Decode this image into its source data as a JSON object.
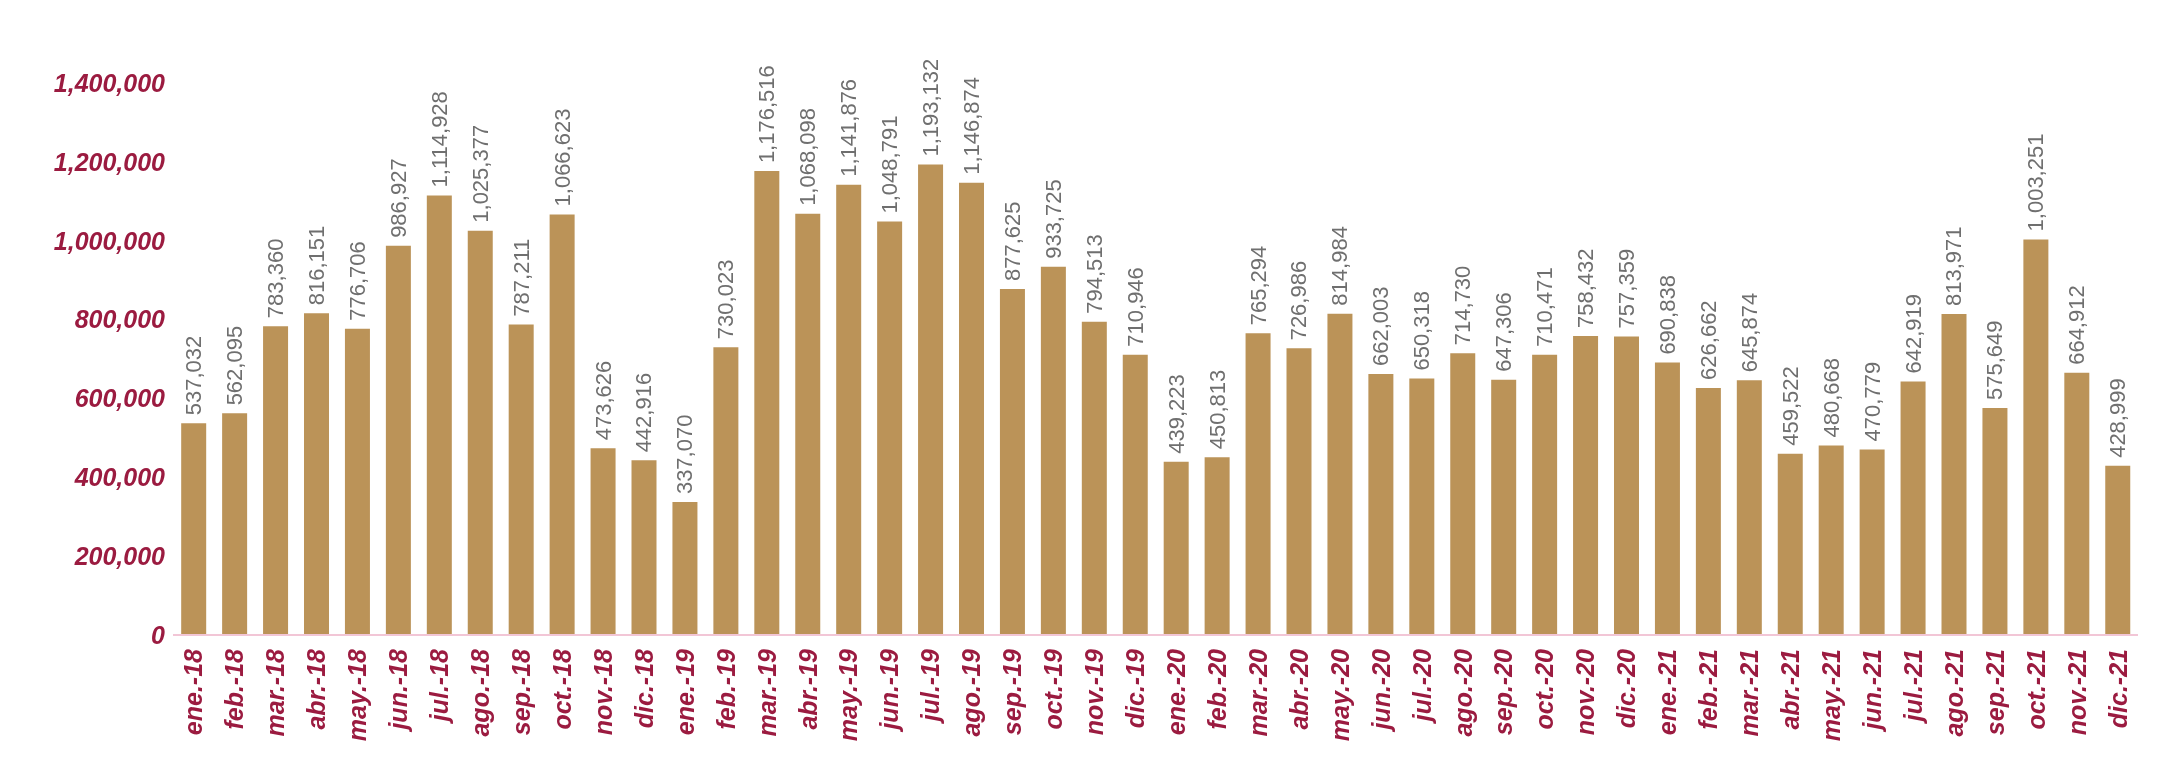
{
  "chart_data": {
    "type": "bar",
    "categories": [
      "ene.-18",
      "feb.-18",
      "mar.-18",
      "abr.-18",
      "may.-18",
      "jun.-18",
      "jul.-18",
      "ago.-18",
      "sep.-18",
      "oct.-18",
      "nov.-18",
      "dic.-18",
      "ene.-19",
      "feb.-19",
      "mar.-19",
      "abr.-19",
      "may.-19",
      "jun.-19",
      "jul.-19",
      "ago.-19",
      "sep.-19",
      "oct.-19",
      "nov.-19",
      "dic.-19",
      "ene.-20",
      "feb.-20",
      "mar.-20",
      "abr.-20",
      "may.-20",
      "jun.-20",
      "jul.-20",
      "ago.-20",
      "sep.-20",
      "oct.-20",
      "nov.-20",
      "dic.-20",
      "ene.-21",
      "feb.-21",
      "mar.-21",
      "abr.-21",
      "may.-21",
      "jun.-21",
      "jul.-21",
      "ago.-21",
      "sep.-21",
      "oct.-21",
      "nov.-21",
      "dic.-21"
    ],
    "values": [
      537032,
      562095,
      783360,
      816151,
      776706,
      986927,
      1114928,
      1025377,
      787211,
      1066623,
      473626,
      442916,
      337070,
      730023,
      1176516,
      1068098,
      1141876,
      1048791,
      1193132,
      1146874,
      877625,
      933725,
      794513,
      710946,
      439223,
      450813,
      765294,
      726986,
      814984,
      662003,
      650318,
      714730,
      647306,
      710471,
      758432,
      757359,
      690838,
      626662,
      645874,
      459522,
      480668,
      470779,
      642919,
      813971,
      575649,
      1003251,
      664912,
      428999
    ],
    "color": "#bb9358",
    "ylim": [
      0,
      1400000
    ],
    "yticks": [
      0,
      {
        "value": 200000,
        "label": "200,000"
      },
      {
        "value": 400000,
        "label": "400,000"
      },
      {
        "value": 600000,
        "label": "600,000"
      },
      {
        "value": 800000,
        "label": "800,000"
      },
      {
        "value": 1000000,
        "label": "1,000,000"
      },
      {
        "value": 1200000,
        "label": "1,200,000"
      },
      {
        "value": 1400000,
        "label": "1,400,000"
      }
    ],
    "value_labels": [
      "537,032",
      "562,095",
      "783,360",
      "816,151",
      "776,706",
      "986,927",
      "1,114,928",
      "1,025,377",
      "787,211",
      "1,066,623",
      "473,626",
      "442,916",
      "337,070",
      "730,023",
      "1,176,516",
      "1,068,098",
      "1,141,876",
      "1,048,791",
      "1,193,132",
      "1,146,874",
      "877,625",
      "933,725",
      "794,513",
      "710,946",
      "439,223",
      "450,813",
      "765,294",
      "726,986",
      "814,984",
      "662,003",
      "650,318",
      "714,730",
      "647,306",
      "710,471",
      "758,432",
      "757,359",
      "690,838",
      "626,662",
      "645,874",
      "459,522",
      "480,668",
      "470,779",
      "642,919",
      "813,971",
      "575,649",
      "1,003,251",
      "664,912",
      "428,999"
    ],
    "grid": false,
    "legend": false
  }
}
